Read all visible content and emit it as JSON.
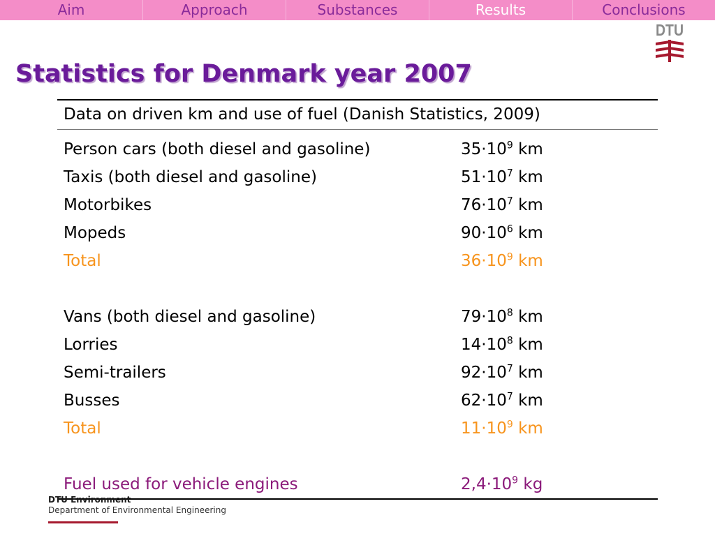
{
  "nav": {
    "items": [
      {
        "label": "Aim"
      },
      {
        "label": "Approach"
      },
      {
        "label": "Substances"
      },
      {
        "label": "Results"
      },
      {
        "label": "Conclusions"
      }
    ],
    "active_index": 3
  },
  "logo": {
    "text": "DTU",
    "color": "#a6192e"
  },
  "title": "Statistics for Denmark year 2007",
  "table": {
    "caption": "Data on driven km and use of fuel (Danish Statistics, 2009)",
    "rows": [
      {
        "label": "Person cars (both diesel and gasoline)",
        "mantissa": "35·10",
        "exp": "9",
        "unit": "km"
      },
      {
        "label": "Taxis (both diesel and gasoline)",
        "mantissa": "51·10",
        "exp": "7",
        "unit": "km"
      },
      {
        "label": "Motorbikes",
        "mantissa": "76·10",
        "exp": "7",
        "unit": "km"
      },
      {
        "label": "Mopeds",
        "mantissa": "90·10",
        "exp": "6",
        "unit": "km"
      },
      {
        "label": "Total",
        "mantissa": "36·10",
        "exp": "9",
        "unit": "km"
      },
      {
        "label": "Vans (both diesel and gasoline)",
        "mantissa": "79·10",
        "exp": "8",
        "unit": "km"
      },
      {
        "label": "Lorries",
        "mantissa": "14·10",
        "exp": "8",
        "unit": "km"
      },
      {
        "label": "Semi-trailers",
        "mantissa": "92·10",
        "exp": "7",
        "unit": "km"
      },
      {
        "label": "Busses",
        "mantissa": "62·10",
        "exp": "7",
        "unit": "km"
      },
      {
        "label": "Total",
        "mantissa": "11·10",
        "exp": "9",
        "unit": "km"
      },
      {
        "label": "Fuel used for vehicle engines",
        "mantissa": "2,4·10",
        "exp": "9",
        "unit": "kg"
      }
    ]
  },
  "footer": {
    "dept": "DTU Environment",
    "sub": "Department of Environmental Engineering"
  },
  "colors": {
    "nav_bg": "#f48dc8",
    "nav_text": "#8a2b9a",
    "title": "#6a1b9a",
    "total": "#f7941d",
    "fuel": "#8b1a7a",
    "brand_red": "#a6192e"
  }
}
